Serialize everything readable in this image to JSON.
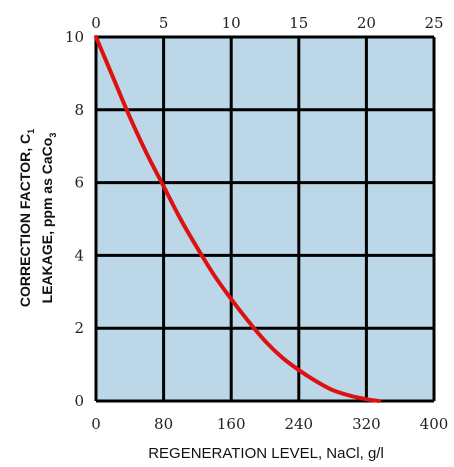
{
  "chart_data": {
    "type": "line",
    "title": "",
    "xlabel": "REGENERATION LEVEL, NaCl, g/l",
    "ylabel_line1": {
      "text": "CORRECTION FACTOR, C",
      "sub": "1"
    },
    "ylabel_line2": {
      "text": "LEAKAGE, ppm as CaCo",
      "sub": "3"
    },
    "xlim": [
      0,
      400
    ],
    "ylim": [
      0,
      10
    ],
    "x2lim": [
      0,
      25
    ],
    "x_ticks": [
      0,
      80,
      160,
      240,
      320,
      400
    ],
    "x_tick_labels": [
      "0",
      "80",
      "160",
      "240",
      "320",
      "400"
    ],
    "x2_ticks": [
      0,
      5,
      10,
      15,
      20,
      25
    ],
    "x2_tick_labels": [
      "0",
      "5",
      "10",
      "15",
      "20",
      "25"
    ],
    "y_ticks": [
      0,
      2,
      4,
      6,
      8,
      10
    ],
    "y_tick_labels": [
      "0",
      "2",
      "4",
      "6",
      "8",
      "10"
    ],
    "grid": true,
    "legend": "none",
    "colors": {
      "plot_background": "#bcd8e8",
      "grid": "#000000",
      "line": "#dd1111"
    },
    "series": [
      {
        "x": [
          0,
          20,
          40,
          60,
          80,
          100,
          120,
          140,
          160,
          180,
          200,
          220,
          240,
          260,
          280,
          300,
          320,
          335
        ],
        "values": [
          10.0,
          8.9,
          7.8,
          6.8,
          5.9,
          5.0,
          4.2,
          3.45,
          2.8,
          2.2,
          1.65,
          1.2,
          0.85,
          0.55,
          0.3,
          0.15,
          0.05,
          0.0
        ]
      }
    ]
  }
}
